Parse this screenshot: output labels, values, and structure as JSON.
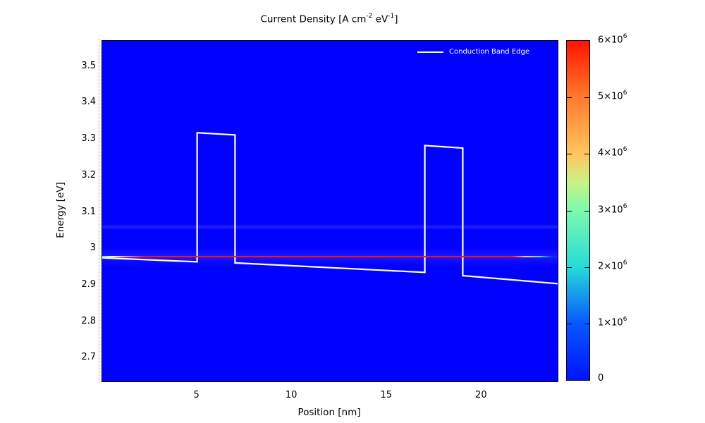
{
  "title": {
    "p1": "Current Density [A cm",
    "s1": "-2",
    "p2": " eV",
    "s2": "-1",
    "p3": "]"
  },
  "axes": {
    "xlabel": "Position [nm]",
    "ylabel": "Energy [eV]"
  },
  "legend": {
    "label": "Conduction Band Edge",
    "line_color": "#ffffff"
  },
  "chart_data": {
    "type": "heatmap",
    "title": "Current Density [A cm⁻² eV⁻¹]",
    "xlabel": "Position [nm]",
    "ylabel": "Energy [eV]",
    "xlim": [
      0,
      24
    ],
    "ylim": [
      2.637,
      3.571
    ],
    "x_ticks": [
      5,
      10,
      15,
      20
    ],
    "y_ticks": [
      3.5,
      3.4,
      3.3,
      3.2,
      3.1,
      3,
      2.9,
      2.8,
      2.7
    ],
    "grid": false,
    "legend_position": "top-right-inside",
    "plot_bg_color": "#0101fe",
    "heatmap_background_value": 0,
    "colorbar": {
      "min": 0,
      "max": 6000000,
      "tick_labels": [
        {
          "value": 0,
          "base": "0",
          "exp": null
        },
        {
          "value": 1000000,
          "base": "1×10",
          "exp": "6"
        },
        {
          "value": 2000000,
          "base": "2×10",
          "exp": "6"
        },
        {
          "value": 3000000,
          "base": "3×10",
          "exp": "6"
        },
        {
          "value": 4000000,
          "base": "4×10",
          "exp": "6"
        },
        {
          "value": 5000000,
          "base": "5×10",
          "exp": "6"
        },
        {
          "value": 6000000,
          "base": "6×10",
          "exp": "6"
        }
      ],
      "colormap": [
        {
          "value": 0,
          "color": "#0013ff"
        },
        {
          "value": 1000000,
          "color": "#0857ff"
        },
        {
          "value": 2000000,
          "color": "#25dcd8"
        },
        {
          "value": 3000000,
          "color": "#7cfaad"
        },
        {
          "value": 3500000,
          "color": "#c9f388"
        },
        {
          "value": 4000000,
          "color": "#ffc55e"
        },
        {
          "value": 5000000,
          "color": "#ff7b2d"
        },
        {
          "value": 6000000,
          "color": "#ff1400"
        }
      ]
    },
    "resonance_current_line": {
      "energy_eV": 2.979,
      "profile_gradient": [
        {
          "pos": 0,
          "color": "#6ce0ff"
        },
        {
          "pos": 0.025,
          "color": "#ffffff"
        },
        {
          "pos": 0.09,
          "color": "#ff1400"
        },
        {
          "pos": 0.9,
          "color": "#ff1400"
        },
        {
          "pos": 0.93,
          "color": "#ffc0c4"
        },
        {
          "pos": 0.962,
          "color": "#55d4ff"
        },
        {
          "pos": 0.988,
          "color": "#0a30ff"
        },
        {
          "pos": 1,
          "color": "rgba(1,1,254,0)"
        }
      ],
      "halo_color": "rgba(70,60,255,0.35)"
    },
    "secondary_resonance_band": {
      "energy_eV": 3.06,
      "color": "rgba(85,85,255,0.38)"
    },
    "conduction_band_edge": {
      "name": "Conduction Band Edge",
      "color": "#ffffff",
      "points": [
        [
          0,
          2.976
        ],
        [
          5,
          2.965
        ],
        [
          5,
          3.319
        ],
        [
          7,
          3.313
        ],
        [
          7,
          2.962
        ],
        [
          17,
          2.936
        ],
        [
          17,
          3.284
        ],
        [
          19,
          3.277
        ],
        [
          19,
          2.927
        ],
        [
          24,
          2.905
        ]
      ]
    }
  }
}
